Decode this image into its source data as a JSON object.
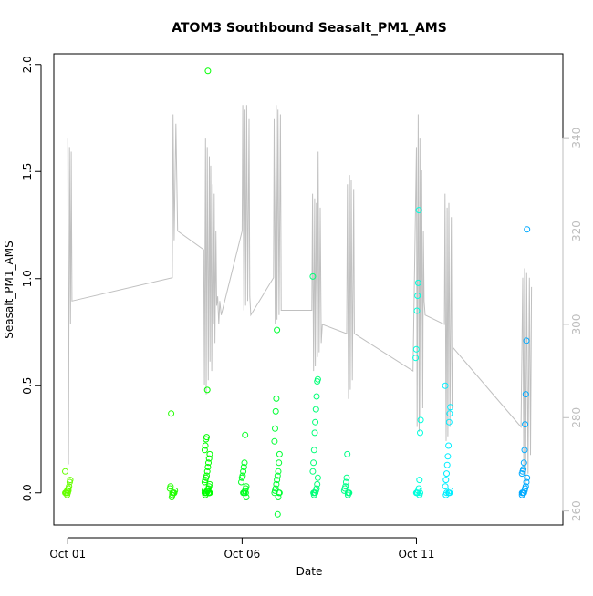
{
  "chart_data": {
    "type": "scatter",
    "title": "ATOM3 Southbound Seasalt_PM1_AMS",
    "xlabel": "Date",
    "ylabel": "Seasalt_PM1_AMS",
    "x_ticks": [
      "Oct 01",
      "Oct 06",
      "Oct 11"
    ],
    "x_tick_days": [
      1,
      6,
      11
    ],
    "xlim": [
      0.6,
      15.2
    ],
    "ylim": [
      -0.15,
      2.05
    ],
    "y_ticks": [
      "0.0",
      "0.5",
      "1.0",
      "1.5",
      "2.0"
    ],
    "y_tick_values": [
      0.0,
      0.5,
      1.0,
      1.5,
      2.0
    ],
    "y2_ticks": [
      "260",
      "280",
      "300",
      "320",
      "340"
    ],
    "y2_tick_values": [
      260,
      280,
      300,
      320,
      340
    ],
    "y2lim": [
      257,
      358
    ],
    "grid": false,
    "colors": {
      "line": "#c0c0c0",
      "marker_start": "#66ff00",
      "marker_mid": "#00ff66",
      "marker_late": "#00ffff",
      "marker_end": "#0099ff",
      "right_axis": "#bdbdbd"
    },
    "line_series": {
      "name": "",
      "color": "#c0c0c0",
      "points": [
        [
          1.0,
          340
        ],
        [
          1.02,
          270
        ],
        [
          1.05,
          338
        ],
        [
          1.08,
          300
        ],
        [
          1.1,
          337
        ],
        [
          1.12,
          305
        ],
        [
          4.0,
          310
        ],
        [
          4.02,
          345
        ],
        [
          4.05,
          318
        ],
        [
          4.1,
          343
        ],
        [
          4.15,
          320
        ],
        [
          4.9,
          316
        ],
        [
          4.92,
          287
        ],
        [
          4.95,
          340
        ],
        [
          4.97,
          285
        ],
        [
          5.0,
          338
        ],
        [
          5.03,
          288
        ],
        [
          5.06,
          336
        ],
        [
          5.08,
          292
        ],
        [
          5.1,
          334
        ],
        [
          5.13,
          290
        ],
        [
          5.16,
          330
        ],
        [
          5.18,
          300
        ],
        [
          5.2,
          328
        ],
        [
          5.22,
          296
        ],
        [
          5.25,
          320
        ],
        [
          5.27,
          304
        ],
        [
          5.3,
          306
        ],
        [
          5.33,
          300
        ],
        [
          5.36,
          305
        ],
        [
          5.4,
          302
        ],
        [
          6.0,
          320
        ],
        [
          6.02,
          347
        ],
        [
          6.05,
          303
        ],
        [
          6.08,
          346
        ],
        [
          6.1,
          304
        ],
        [
          6.13,
          347
        ],
        [
          6.16,
          305
        ],
        [
          6.2,
          344
        ],
        [
          6.22,
          306
        ],
        [
          6.25,
          302
        ],
        [
          6.9,
          310
        ],
        [
          6.92,
          344
        ],
        [
          6.95,
          300
        ],
        [
          6.98,
          347
        ],
        [
          7.0,
          301
        ],
        [
          7.03,
          346
        ],
        [
          7.06,
          302
        ],
        [
          7.1,
          345
        ],
        [
          7.12,
          303
        ],
        [
          8.0,
          303
        ],
        [
          8.02,
          328
        ],
        [
          8.05,
          290
        ],
        [
          8.08,
          327
        ],
        [
          8.1,
          291
        ],
        [
          8.13,
          326
        ],
        [
          8.16,
          293
        ],
        [
          8.18,
          337
        ],
        [
          8.21,
          294
        ],
        [
          8.24,
          325
        ],
        [
          8.27,
          296
        ],
        [
          8.3,
          300
        ],
        [
          9.0,
          298
        ],
        [
          9.02,
          330
        ],
        [
          9.05,
          284
        ],
        [
          9.08,
          332
        ],
        [
          9.1,
          286
        ],
        [
          9.13,
          331
        ],
        [
          9.16,
          288
        ],
        [
          9.2,
          329
        ],
        [
          9.22,
          298
        ],
        [
          10.9,
          290
        ],
        [
          11.0,
          338
        ],
        [
          11.02,
          278
        ],
        [
          11.05,
          345
        ],
        [
          11.08,
          277
        ],
        [
          11.1,
          340
        ],
        [
          11.12,
          280
        ],
        [
          11.15,
          333
        ],
        [
          11.18,
          282
        ],
        [
          11.2,
          320
        ],
        [
          11.22,
          305
        ],
        [
          11.25,
          302
        ],
        [
          11.8,
          300
        ],
        [
          11.82,
          328
        ],
        [
          11.85,
          275
        ],
        [
          11.88,
          325
        ],
        [
          11.9,
          276
        ],
        [
          11.93,
          326
        ],
        [
          11.96,
          278
        ],
        [
          12.0,
          323
        ],
        [
          12.02,
          282
        ],
        [
          12.05,
          295
        ],
        [
          14.0,
          278
        ],
        [
          14.05,
          310
        ],
        [
          14.08,
          268
        ],
        [
          14.1,
          312
        ],
        [
          14.13,
          266
        ],
        [
          14.16,
          311
        ],
        [
          14.2,
          268
        ],
        [
          14.24,
          310
        ],
        [
          14.27,
          272
        ],
        [
          14.3,
          308
        ]
      ]
    },
    "scatter_series": {
      "name": "",
      "clusters": [
        {
          "day": 1.0,
          "color": "#66ff00",
          "values": [
            0.0,
            0.0,
            0.0,
            0.01,
            0.01,
            0.02,
            0.03,
            0.05,
            0.06,
            0.1,
            0.0,
            0.0,
            -0.01,
            0.0,
            0.01
          ]
        },
        {
          "day": 4.0,
          "color": "#22ff00",
          "values": [
            0.0,
            0.0,
            0.0,
            0.0,
            0.01,
            0.02,
            0.03,
            0.37,
            -0.02,
            -0.01,
            0.0,
            0.0
          ]
        },
        {
          "day": 5.0,
          "color": "#00ff00",
          "values": [
            0.0,
            0.0,
            0.0,
            0.0,
            0.0,
            0.01,
            0.01,
            0.02,
            0.03,
            0.04,
            0.05,
            0.06,
            0.07,
            0.08,
            0.1,
            0.12,
            0.14,
            0.16,
            0.18,
            0.2,
            0.22,
            0.25,
            0.26,
            0.48,
            1.97,
            0.0,
            0.0,
            0.0,
            0.01,
            -0.01
          ]
        },
        {
          "day": 6.05,
          "color": "#00ff22",
          "values": [
            0.0,
            0.0,
            0.0,
            0.01,
            0.02,
            0.03,
            0.05,
            0.07,
            0.08,
            0.1,
            0.12,
            0.14,
            0.27,
            0.0,
            -0.02
          ]
        },
        {
          "day": 7.0,
          "color": "#00ff33",
          "values": [
            0.0,
            0.0,
            0.0,
            0.01,
            0.02,
            0.04,
            0.06,
            0.08,
            0.1,
            0.14,
            0.18,
            0.24,
            0.3,
            0.38,
            0.44,
            0.76,
            -0.1,
            -0.02,
            0.0
          ]
        },
        {
          "day": 8.1,
          "color": "#00ff77",
          "values": [
            0.0,
            0.0,
            0.0,
            0.01,
            0.02,
            0.04,
            0.07,
            0.1,
            0.14,
            0.2,
            0.28,
            0.33,
            0.39,
            0.45,
            0.52,
            0.53,
            1.01,
            0.0,
            -0.01
          ]
        },
        {
          "day": 9.0,
          "color": "#00ff88",
          "values": [
            0.0,
            0.0,
            0.0,
            0.01,
            0.02,
            0.03,
            0.05,
            0.07,
            0.18,
            -0.01,
            0.0
          ]
        },
        {
          "day": 11.05,
          "color": "#00ffdd",
          "values": [
            0.0,
            0.0,
            0.0,
            0.01,
            0.02,
            0.06,
            0.28,
            0.34,
            0.63,
            0.67,
            0.85,
            0.92,
            0.98,
            1.32,
            -0.01,
            0.0
          ]
        },
        {
          "day": 11.9,
          "color": "#00eeff",
          "values": [
            0.0,
            0.0,
            0.0,
            0.01,
            0.03,
            0.06,
            0.09,
            0.13,
            0.17,
            0.22,
            0.33,
            0.37,
            0.4,
            0.5,
            -0.01,
            0.0
          ]
        },
        {
          "day": 14.1,
          "color": "#00aaff",
          "values": [
            0.0,
            0.0,
            0.0,
            0.0,
            0.01,
            0.02,
            0.03,
            0.05,
            0.07,
            0.09,
            0.1,
            0.11,
            0.14,
            0.2,
            0.32,
            0.46,
            0.71,
            1.23,
            -0.01,
            0.0,
            0.0
          ]
        }
      ]
    }
  }
}
